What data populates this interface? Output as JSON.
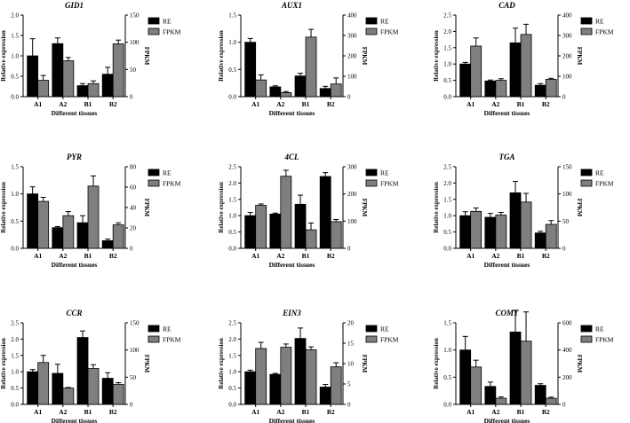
{
  "figure": {
    "xlabel": "Different tissues",
    "ylabel_left": "Relative expression",
    "ylabel_right": "FPKM",
    "legend": [
      {
        "name": "RE",
        "color": "#000000"
      },
      {
        "name": "FPKM",
        "color": "#7f7f7f"
      }
    ]
  },
  "chart_data": [
    {
      "type": "bar",
      "title": "GID1",
      "categories": [
        "A1",
        "A2",
        "B1",
        "B2"
      ],
      "series": [
        {
          "name": "RE",
          "axis": "left",
          "values": [
            1.0,
            1.3,
            0.27,
            0.55
          ],
          "errors": [
            0.42,
            0.14,
            0.05,
            0.17
          ]
        },
        {
          "name": "FPKM",
          "axis": "right",
          "values": [
            30,
            66,
            24,
            97
          ],
          "errors": [
            9,
            6,
            5,
            7
          ]
        }
      ],
      "ylim_left": [
        0,
        2.0
      ],
      "yticks_left": [
        "0.0",
        "0.5",
        "1.0",
        "1.5",
        "2.0"
      ],
      "ylim_right": [
        0,
        150
      ],
      "yticks_right": [
        "0",
        "50",
        "100",
        "150"
      ]
    },
    {
      "type": "bar",
      "title": "AUX1",
      "categories": [
        "A1",
        "A2",
        "B1",
        "B2"
      ],
      "series": [
        {
          "name": "RE",
          "axis": "left",
          "values": [
            1.0,
            0.18,
            0.38,
            0.15
          ],
          "errors": [
            0.07,
            0.02,
            0.05,
            0.04
          ]
        },
        {
          "name": "FPKM",
          "axis": "right",
          "values": [
            82,
            20,
            292,
            62
          ],
          "errors": [
            25,
            5,
            38,
            30
          ]
        }
      ],
      "ylim_left": [
        0,
        1.5
      ],
      "yticks_left": [
        "0.0",
        "0.5",
        "1.0",
        "1.5"
      ],
      "ylim_right": [
        0,
        400
      ],
      "yticks_right": [
        "0",
        "100",
        "200",
        "300",
        "400"
      ]
    },
    {
      "type": "bar",
      "title": "CAD",
      "categories": [
        "A1",
        "A2",
        "B1",
        "B2"
      ],
      "series": [
        {
          "name": "RE",
          "axis": "left",
          "values": [
            1.0,
            0.48,
            1.65,
            0.35
          ],
          "errors": [
            0.05,
            0.03,
            0.45,
            0.05
          ]
        },
        {
          "name": "FPKM",
          "axis": "right",
          "values": [
            248,
            80,
            305,
            85
          ],
          "errors": [
            40,
            8,
            50,
            5
          ]
        }
      ],
      "ylim_left": [
        0,
        2.5
      ],
      "yticks_left": [
        "0.0",
        "0.5",
        "1.0",
        "1.5",
        "2.0",
        "2.5"
      ],
      "ylim_right": [
        0,
        400
      ],
      "yticks_right": [
        "0",
        "100",
        "200",
        "300",
        "400"
      ]
    },
    {
      "type": "bar",
      "title": "PYR",
      "categories": [
        "A1",
        "A2",
        "B1",
        "B2"
      ],
      "series": [
        {
          "name": "RE",
          "axis": "left",
          "values": [
            1.0,
            0.38,
            0.47,
            0.14
          ],
          "errors": [
            0.13,
            0.02,
            0.13,
            0.03
          ]
        },
        {
          "name": "FPKM",
          "axis": "right",
          "values": [
            46,
            32,
            61,
            23
          ],
          "errors": [
            4,
            4,
            10,
            2
          ]
        }
      ],
      "ylim_left": [
        0,
        1.5
      ],
      "yticks_left": [
        "0.0",
        "0.5",
        "1.0",
        "1.5"
      ],
      "ylim_right": [
        0,
        80
      ],
      "yticks_right": [
        "0",
        "20",
        "40",
        "60",
        "80"
      ]
    },
    {
      "type": "bar",
      "title": "4CL",
      "categories": [
        "A1",
        "A2",
        "B1",
        "B2"
      ],
      "series": [
        {
          "name": "RE",
          "axis": "left",
          "values": [
            1.0,
            1.05,
            1.35,
            2.2
          ],
          "errors": [
            0.1,
            0.03,
            0.28,
            0.12
          ]
        },
        {
          "name": "FPKM",
          "axis": "right",
          "values": [
            158,
            265,
            68,
            98
          ],
          "errors": [
            5,
            22,
            25,
            8
          ]
        }
      ],
      "ylim_left": [
        0,
        2.5
      ],
      "yticks_left": [
        "0.0",
        "0.5",
        "1.0",
        "1.5",
        "2.0",
        "2.5"
      ],
      "ylim_right": [
        0,
        300
      ],
      "yticks_right": [
        "0",
        "100",
        "200",
        "300"
      ]
    },
    {
      "type": "bar",
      "title": "TGA",
      "categories": [
        "A1",
        "A2",
        "B1",
        "B2"
      ],
      "series": [
        {
          "name": "RE",
          "axis": "left",
          "values": [
            1.0,
            0.95,
            1.7,
            0.47
          ],
          "errors": [
            0.12,
            0.12,
            0.35,
            0.05
          ]
        },
        {
          "name": "FPKM",
          "axis": "right",
          "values": [
            68,
            61,
            85,
            44
          ],
          "errors": [
            6,
            5,
            16,
            7
          ]
        }
      ],
      "ylim_left": [
        0,
        2.5
      ],
      "yticks_left": [
        "0.0",
        "0.5",
        "1.0",
        "1.5",
        "2.0",
        "2.5"
      ],
      "ylim_right": [
        0,
        150
      ],
      "yticks_right": [
        "0",
        "50",
        "100",
        "150"
      ]
    },
    {
      "type": "bar",
      "title": "CCR",
      "categories": [
        "A1",
        "A2",
        "B1",
        "B2"
      ],
      "series": [
        {
          "name": "RE",
          "axis": "left",
          "values": [
            1.0,
            0.95,
            2.05,
            0.8
          ],
          "errors": [
            0.07,
            0.28,
            0.2,
            0.17
          ]
        },
        {
          "name": "FPKM",
          "axis": "right",
          "values": [
            77,
            30,
            66,
            37
          ],
          "errors": [
            13,
            1,
            7,
            3
          ]
        }
      ],
      "ylim_left": [
        0,
        2.5
      ],
      "yticks_left": [
        "0.0",
        "0.5",
        "1.0",
        "1.5",
        "2.0",
        "2.5"
      ],
      "ylim_right": [
        0,
        150
      ],
      "yticks_right": [
        "0",
        "50",
        "100",
        "150"
      ]
    },
    {
      "type": "bar",
      "title": "EIN3",
      "categories": [
        "A1",
        "A2",
        "B1",
        "B2"
      ],
      "series": [
        {
          "name": "RE",
          "axis": "left",
          "values": [
            1.0,
            0.92,
            2.02,
            0.53
          ],
          "errors": [
            0.05,
            0.03,
            0.32,
            0.08
          ]
        },
        {
          "name": "FPKM",
          "axis": "right",
          "values": [
            13.7,
            14.0,
            13.4,
            9.2
          ],
          "errors": [
            1.5,
            0.8,
            0.7,
            1.0
          ]
        }
      ],
      "ylim_left": [
        0,
        2.5
      ],
      "yticks_left": [
        "0.0",
        "0.5",
        "1.0",
        "1.5",
        "2.0",
        "2.5"
      ],
      "ylim_right": [
        0,
        20
      ],
      "yticks_right": [
        "0",
        "5",
        "10",
        "15",
        "20"
      ]
    },
    {
      "type": "bar",
      "title": "COMT",
      "categories": [
        "A1",
        "A2",
        "B1",
        "B2"
      ],
      "series": [
        {
          "name": "RE",
          "axis": "left",
          "values": [
            1.0,
            0.33,
            1.33,
            0.35
          ],
          "errors": [
            0.25,
            0.08,
            0.4,
            0.03
          ]
        },
        {
          "name": "FPKM",
          "axis": "right",
          "values": [
            275,
            45,
            465,
            45
          ],
          "errors": [
            50,
            10,
            215,
            8
          ]
        }
      ],
      "ylim_left": [
        0,
        1.5
      ],
      "yticks_left": [
        "0.0",
        "0.5",
        "1.0",
        "1.5"
      ],
      "ylim_right": [
        0,
        600
      ],
      "yticks_right": [
        "0",
        "200",
        "400",
        "600"
      ]
    }
  ]
}
